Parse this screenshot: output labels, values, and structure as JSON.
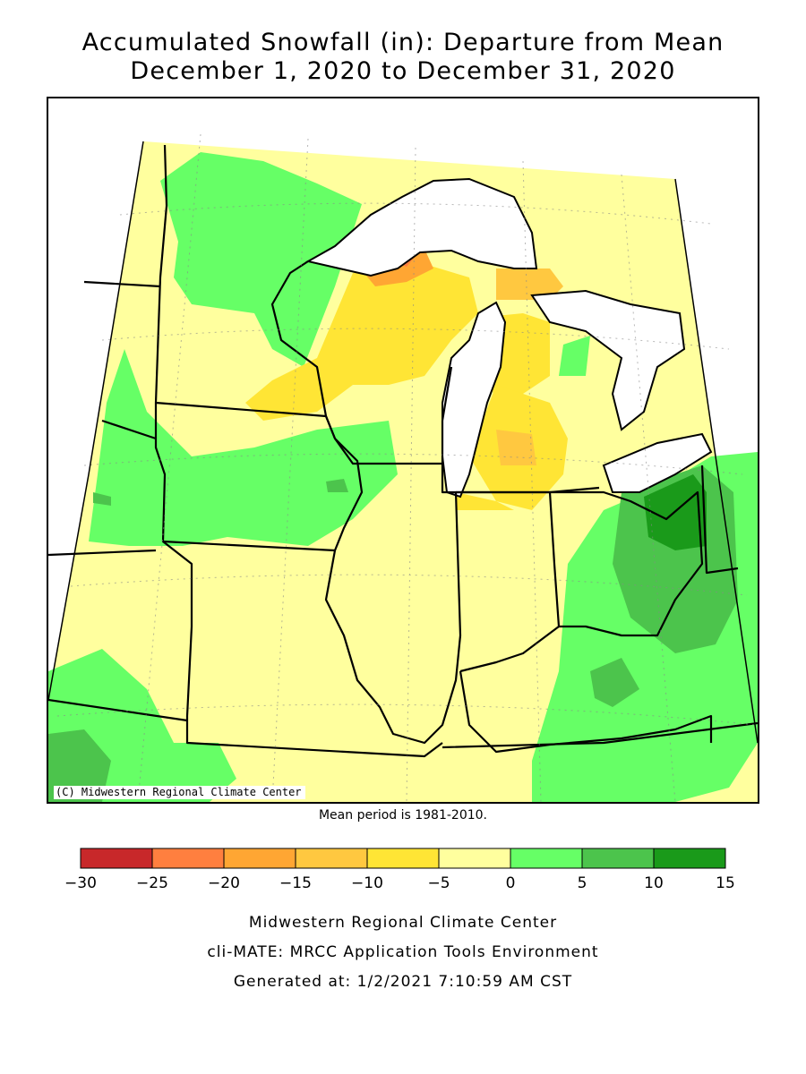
{
  "title": {
    "line1": "Accumulated Snowfall (in): Departure from Mean",
    "line2": "December 1, 2020 to December 31, 2020"
  },
  "map": {
    "copyright": "(C) Midwestern Regional Climate Center",
    "mean_note": "Mean period is 1981-2010."
  },
  "legend": {
    "ticks": [
      "-30",
      "-25",
      "-20",
      "-15",
      "-10",
      "-5",
      "0",
      "5",
      "10",
      "15"
    ],
    "colors": [
      "#c8282a",
      "#ff7f3f",
      "#ffa633",
      "#ffc840",
      "#ffe535",
      "#ffff9e",
      "#66ff66",
      "#4cc44c",
      "#1a9a1a"
    ]
  },
  "footer": {
    "line1": "Midwestern Regional Climate Center",
    "line2": "cli-MATE: MRCC Application Tools Environment",
    "line3": "Generated at: 1/2/2021 7:10:59 AM CST"
  }
}
